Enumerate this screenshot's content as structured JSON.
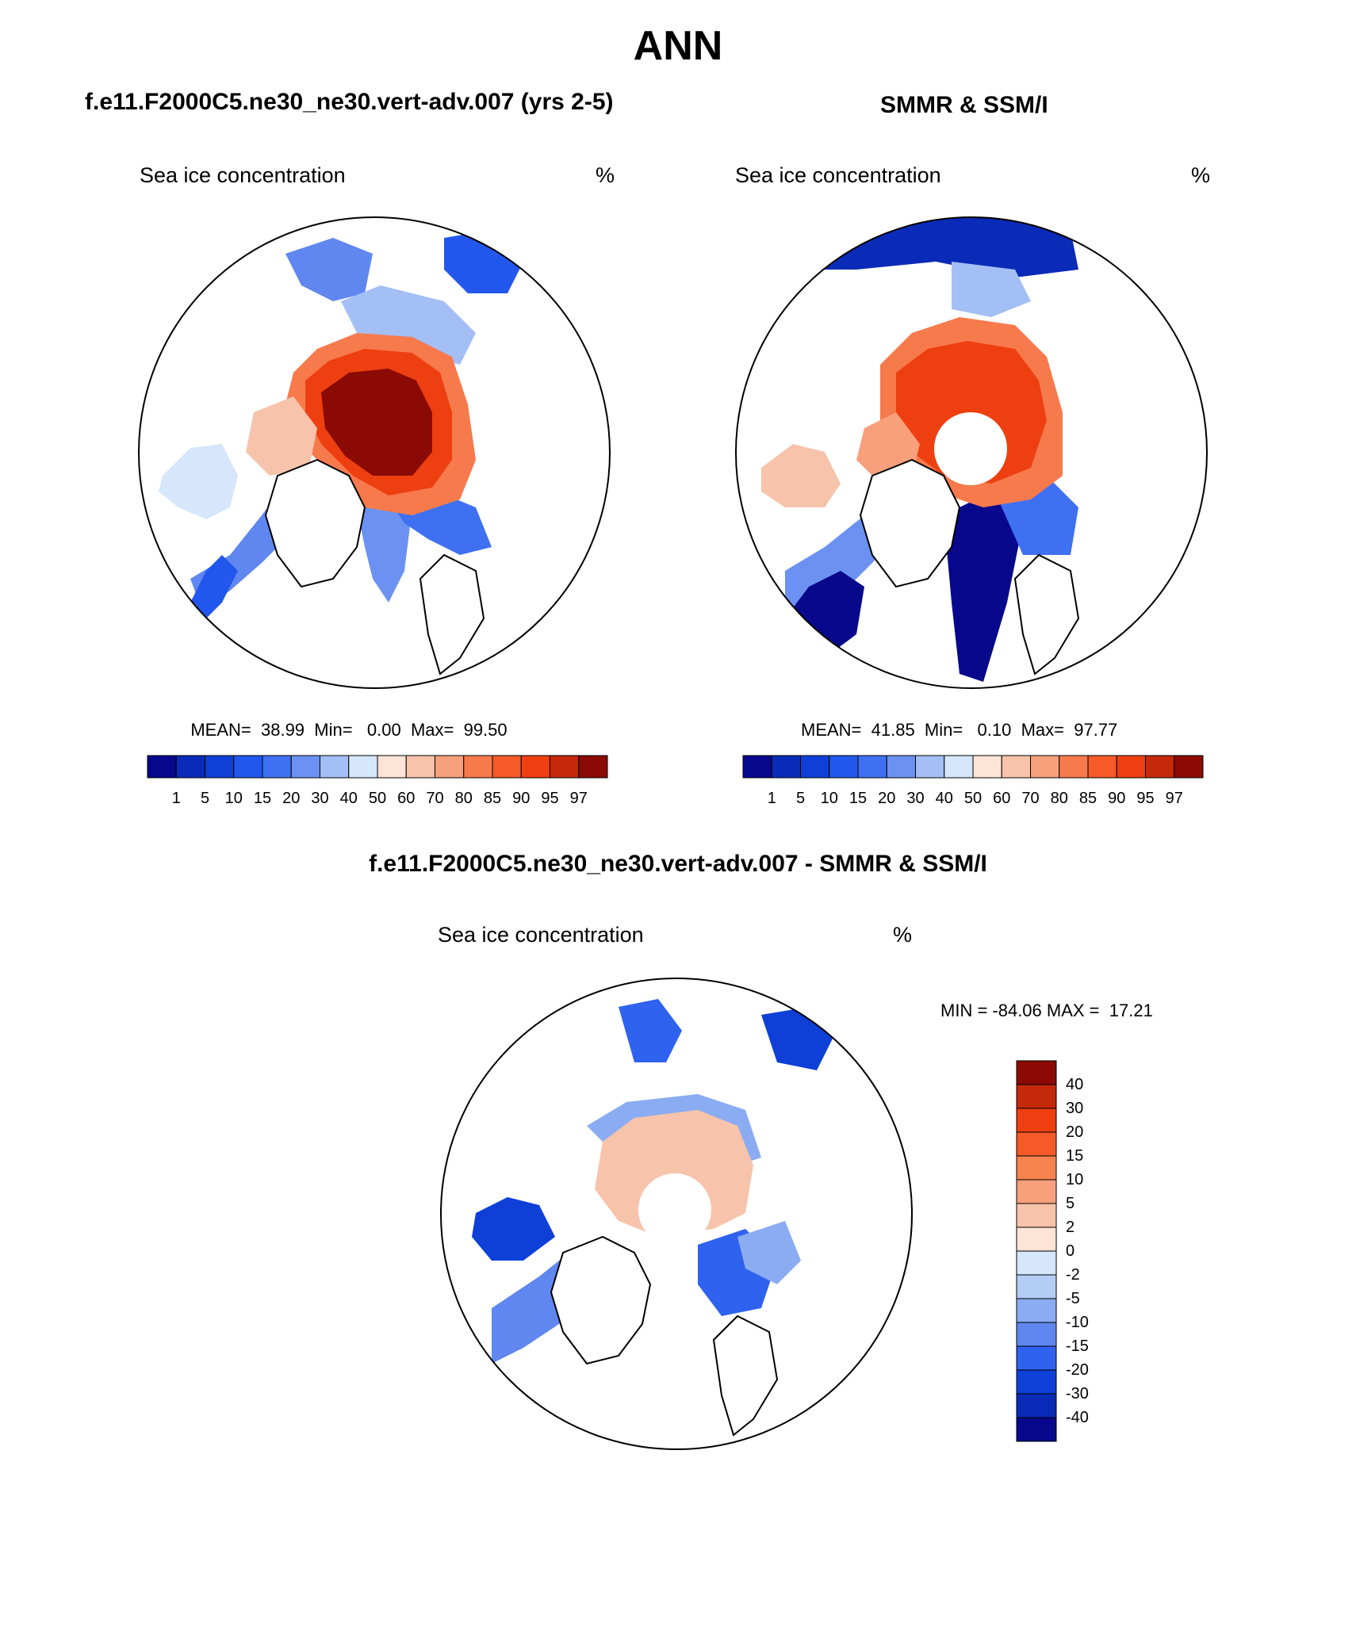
{
  "figure_title": "ANN",
  "colors": {
    "land_outline": "#000000",
    "ocean": "#ffffff"
  },
  "panels": [
    {
      "id": "model",
      "title": "f.e11.F2000C5.ne30_ne30.vert-adv.007 (yrs 2-5)",
      "variable": "Sea ice concentration",
      "units": "%",
      "stats": "MEAN=  38.99  Min=   0.00  Max=  99.50"
    },
    {
      "id": "obs",
      "title": "SMMR & SSM/I",
      "variable": "Sea ice concentration",
      "units": "%",
      "stats": "MEAN=  41.85  Min=   0.10  Max=  97.77"
    },
    {
      "id": "diff",
      "title": "f.e11.F2000C5.ne30_ne30.vert-adv.007 - SMMR & SSM/I",
      "variable": "Sea ice concentration",
      "units": "%",
      "stats": "MIN = -84.06 MAX =  17.21"
    }
  ],
  "colorbar_abs": {
    "labels": [
      "1",
      "5",
      "10",
      "15",
      "20",
      "30",
      "40",
      "50",
      "60",
      "70",
      "80",
      "85",
      "90",
      "95",
      "97"
    ],
    "colors": [
      "#08088c",
      "#0a2bb8",
      "#0e40d8",
      "#2257ee",
      "#3f70f2",
      "#6b92f2",
      "#a4bff5",
      "#d6e6fb",
      "#fde4d6",
      "#f8c3ab",
      "#f7a07c",
      "#f77a4d",
      "#f65a28",
      "#ee3f10",
      "#c4290a",
      "#8b0a04"
    ]
  },
  "colorbar_diff": {
    "labels": [
      "40",
      "30",
      "20",
      "15",
      "10",
      "5",
      "2",
      "0",
      "-2",
      "-5",
      "-10",
      "-15",
      "-20",
      "-30",
      "-40"
    ],
    "colors": [
      "#8b0a04",
      "#c4290a",
      "#ee3f10",
      "#f65a28",
      "#f7844f",
      "#f8a07c",
      "#f8c3ab",
      "#fde4d6",
      "#d6e6fb",
      "#b4cdf6",
      "#8aacf2",
      "#5f87ef",
      "#2f62ef",
      "#0e40d8",
      "#0a2bb8",
      "#08088c"
    ]
  },
  "chart_data": [
    {
      "type": "map",
      "projection": "north polar stereographic",
      "title": "f.e11.F2000C5.ne30_ne30.vert-adv.007 (yrs 2-5)",
      "field": "Sea ice concentration",
      "units": "%",
      "mean": 38.99,
      "min": 0.0,
      "max": 99.5,
      "contour_levels": [
        1,
        5,
        10,
        15,
        20,
        30,
        40,
        50,
        60,
        70,
        80,
        85,
        90,
        95,
        97
      ]
    },
    {
      "type": "map",
      "projection": "north polar stereographic",
      "title": "SMMR & SSM/I",
      "field": "Sea ice concentration",
      "units": "%",
      "mean": 41.85,
      "min": 0.1,
      "max": 97.77,
      "contour_levels": [
        1,
        5,
        10,
        15,
        20,
        30,
        40,
        50,
        60,
        70,
        80,
        85,
        90,
        95,
        97
      ]
    },
    {
      "type": "map",
      "projection": "north polar stereographic",
      "title": "f.e11.F2000C5.ne30_ne30.vert-adv.007 - SMMR & SSM/I",
      "field": "Sea ice concentration",
      "units": "%",
      "min": -84.06,
      "max": 17.21,
      "contour_levels": [
        -40,
        -30,
        -20,
        -15,
        -10,
        -5,
        -2,
        0,
        2,
        5,
        10,
        15,
        20,
        30,
        40
      ]
    }
  ]
}
